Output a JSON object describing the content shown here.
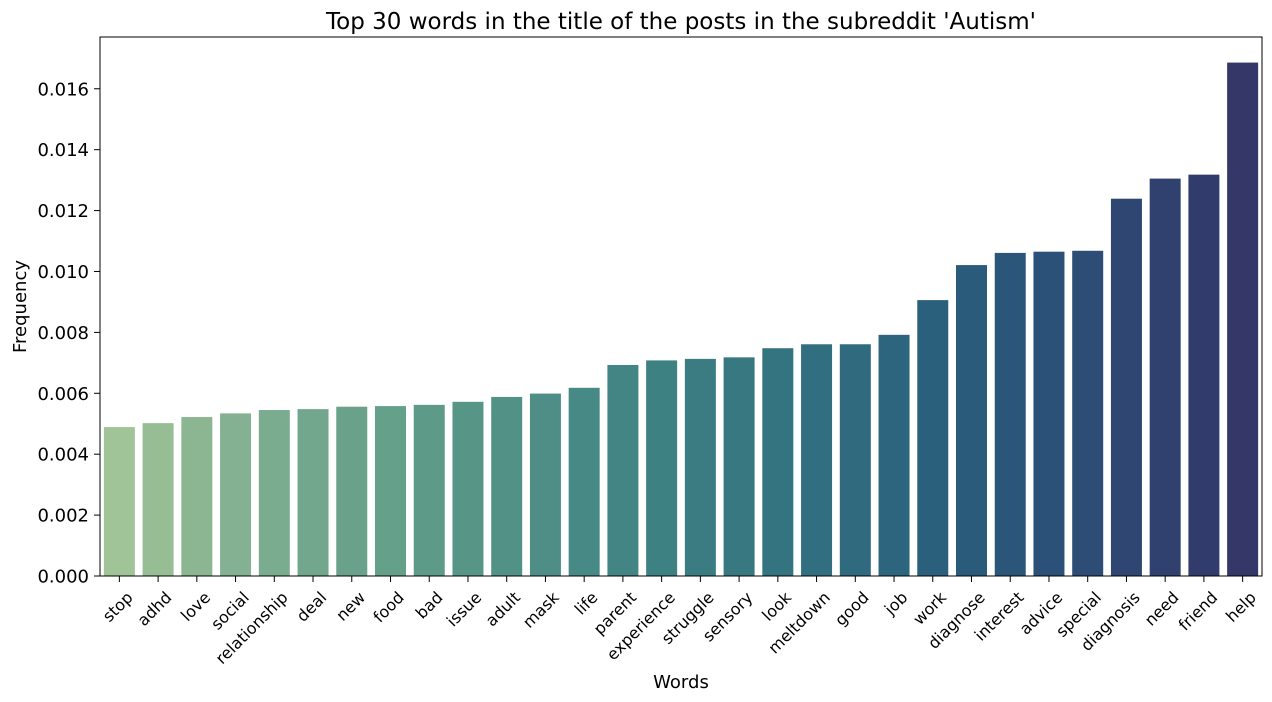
{
  "chart_data": {
    "type": "bar",
    "title": "Top 30 words in the title of the posts in the subreddit 'Autism'",
    "xlabel": "Words",
    "ylabel": "Frequency",
    "ylim": [
      0,
      0.0177
    ],
    "yticks": [
      "0.000",
      "0.002",
      "0.004",
      "0.006",
      "0.008",
      "0.010",
      "0.012",
      "0.014",
      "0.016"
    ],
    "categories": [
      "stop",
      "adhd",
      "love",
      "social",
      "relationship",
      "deal",
      "new",
      "food",
      "bad",
      "issue",
      "adult",
      "mask",
      "life",
      "parent",
      "experience",
      "struggle",
      "sensory",
      "look",
      "meltdown",
      "good",
      "job",
      "work",
      "diagnose",
      "interest",
      "advice",
      "special",
      "diagnosis",
      "need",
      "friend",
      "help"
    ],
    "values": [
      0.00489,
      0.00502,
      0.00522,
      0.00534,
      0.00545,
      0.00548,
      0.00556,
      0.00558,
      0.00562,
      0.00572,
      0.00588,
      0.00599,
      0.00618,
      0.00693,
      0.00708,
      0.00713,
      0.00718,
      0.00748,
      0.00761,
      0.00761,
      0.00792,
      0.00906,
      0.01021,
      0.01061,
      0.01065,
      0.01068,
      0.01239,
      0.01305,
      0.01318,
      0.01686
    ],
    "colors": [
      "#a0c398",
      "#96bd93",
      "#8cb591",
      "#84b191",
      "#7aac8f",
      "#72a78d",
      "#6aa18b",
      "#64a08a",
      "#5d9a88",
      "#579686",
      "#519186",
      "#4e8e86",
      "#478a85",
      "#438584",
      "#3e8182",
      "#3a7c81",
      "#377881",
      "#347380",
      "#316e7f",
      "#2f6a7e",
      "#2d657e",
      "#2b607d",
      "#2b5b7b",
      "#2b5679",
      "#2c5178",
      "#2d4c76",
      "#2f4672",
      "#30416f",
      "#323c6c",
      "#343768"
    ],
    "grid": false,
    "legend": "none"
  }
}
